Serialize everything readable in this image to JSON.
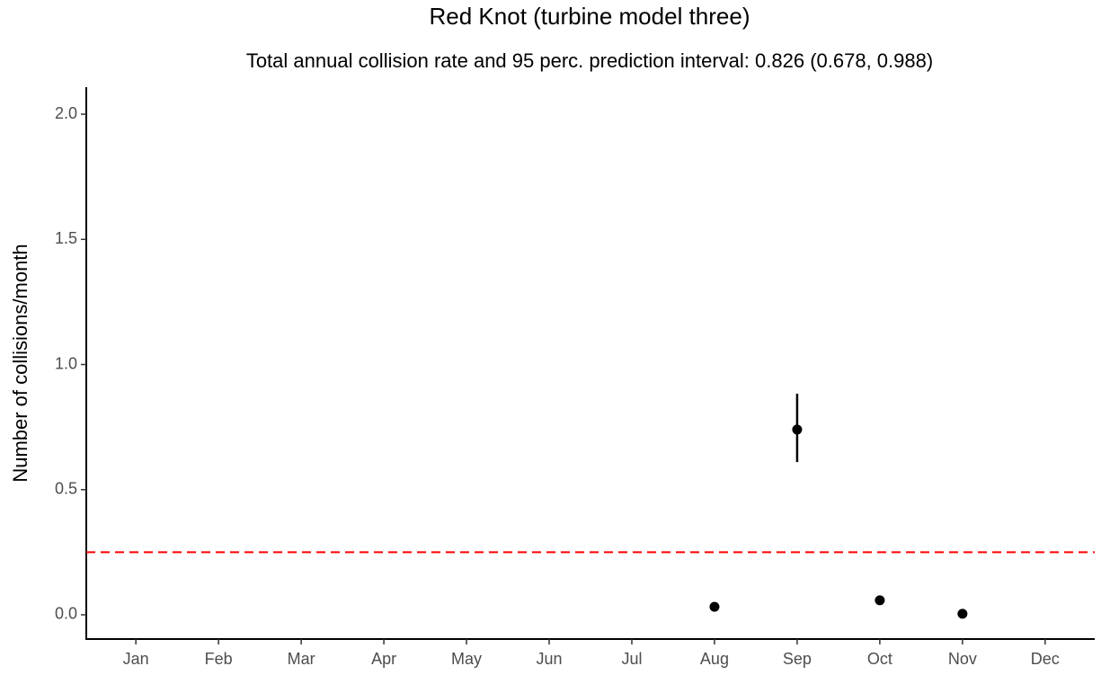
{
  "chart_data": {
    "type": "point",
    "title": "Red Knot (turbine model three)",
    "subtitle": "Total annual collision rate and 95 perc. prediction interval: 0.826 (0.678, 0.988)",
    "y_label": "Number of collisions/month",
    "categories": [
      "Jan",
      "Feb",
      "Mar",
      "Apr",
      "May",
      "Jun",
      "Jul",
      "Aug",
      "Sep",
      "Oct",
      "Nov",
      "Dec"
    ],
    "values": [
      null,
      null,
      null,
      null,
      null,
      null,
      null,
      0.032,
      0.74,
      0.058,
      0.004,
      null
    ],
    "lower": [
      null,
      null,
      null,
      null,
      null,
      null,
      null,
      null,
      0.61,
      null,
      null,
      null
    ],
    "upper": [
      null,
      null,
      null,
      null,
      null,
      null,
      null,
      null,
      0.883,
      null,
      null,
      null
    ],
    "color": "#000000",
    "hline": 0.25,
    "hline_color": "#ff0000",
    "ylim": [
      -0.097,
      2.108
    ],
    "yticks": [
      {
        "value": 0,
        "label": "0.0"
      },
      0.5,
      {
        "value": 1,
        "label": "1.0"
      },
      1.5,
      {
        "value": 2,
        "label": "2.0"
      }
    ],
    "grid": false
  }
}
